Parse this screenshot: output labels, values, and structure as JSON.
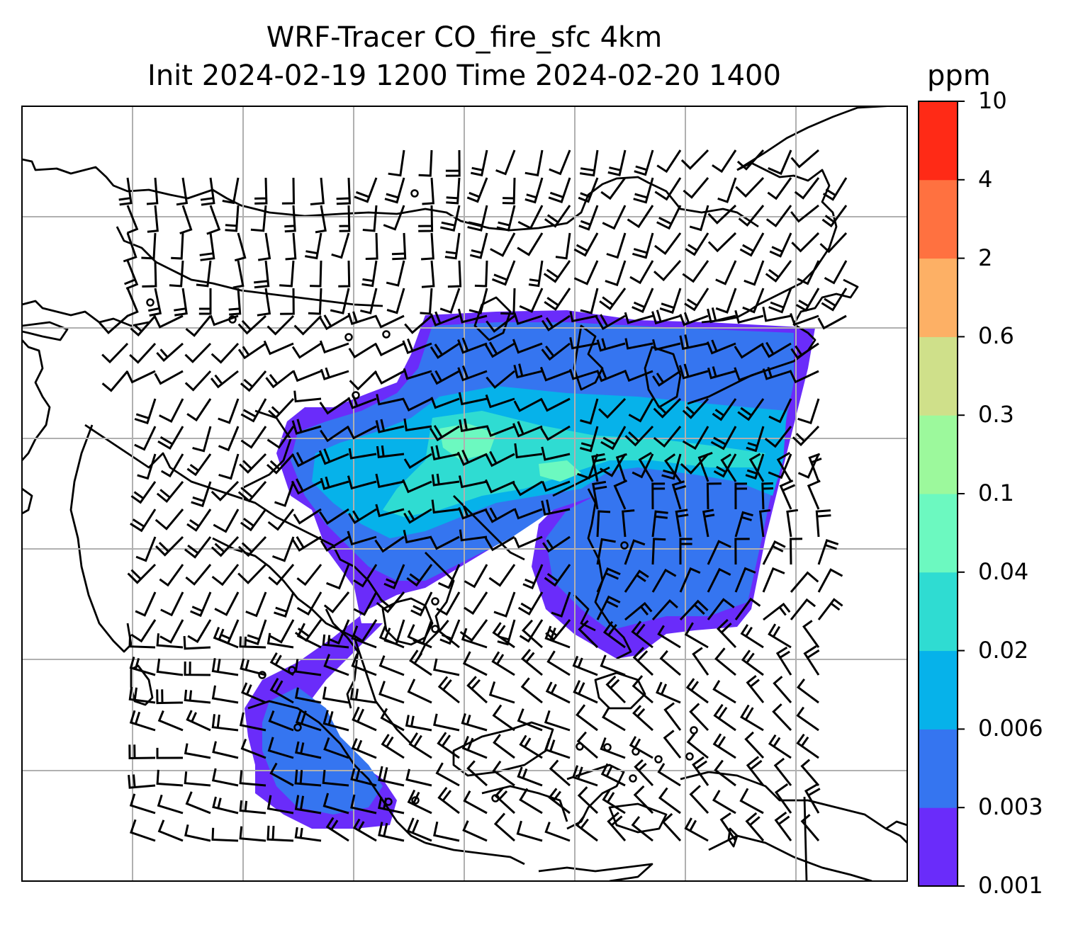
{
  "title_line1": "WRF-Tracer CO_fire_sfc 4km",
  "title_line2": "Init 2024-02-19 1200 Time 2024-02-20 1400",
  "colorbar": {
    "unit": "ppm",
    "levels": [
      "0.001",
      "0.003",
      "0.006",
      "0.02",
      "0.04",
      "0.1",
      "0.3",
      "0.6",
      "2",
      "4",
      "10"
    ],
    "colors": [
      "#6a2cfa",
      "#3575f0",
      "#06b2ea",
      "#2fdcd2",
      "#6cf9c0",
      "#9cf99c",
      "#cfe08a",
      "#fdb065",
      "#ff7140",
      "#ff2a16"
    ]
  }
}
